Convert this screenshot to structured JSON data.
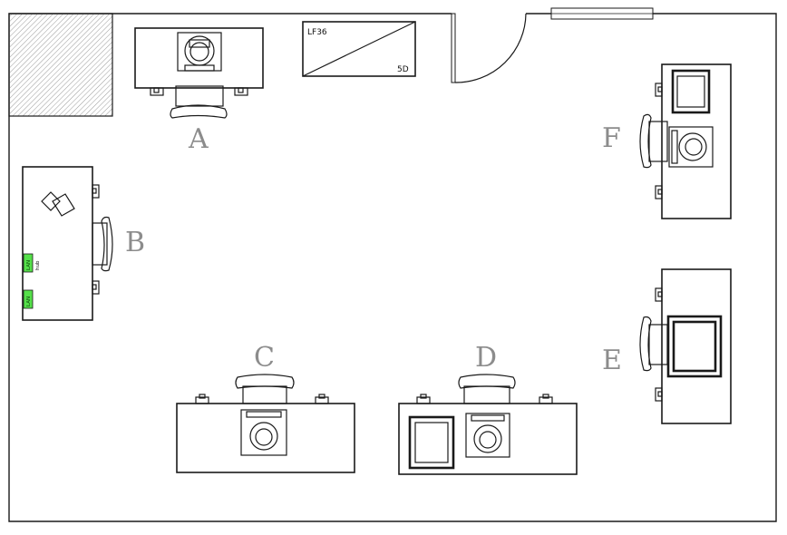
{
  "floor_plan": {
    "stations": [
      {
        "id": "A",
        "label": "A"
      },
      {
        "id": "B",
        "label": "B"
      },
      {
        "id": "C",
        "label": "C"
      },
      {
        "id": "D",
        "label": "D"
      },
      {
        "id": "E",
        "label": "E"
      },
      {
        "id": "F",
        "label": "F"
      }
    ],
    "cabinet": {
      "top_label": "LF36",
      "bottom_label": "5D"
    },
    "network": {
      "lan_port_label": "LAN",
      "hub_label": "hub"
    },
    "colors": {
      "lan_port": "#55e04a",
      "labels": "#8c8c8c",
      "hatch": "#9a9a9a"
    }
  }
}
